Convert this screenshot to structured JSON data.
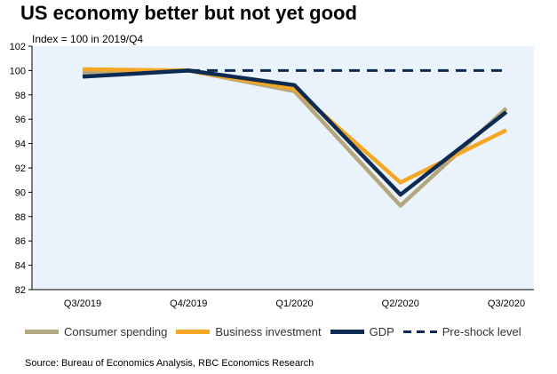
{
  "chart_data": {
    "type": "line",
    "title": "US economy better but not yet good",
    "subtitle": "Index = 100 in 2019/Q4",
    "categories": [
      "Q3/2019",
      "Q4/2019",
      "Q1/2020",
      "Q2/2020",
      "Q3/2020"
    ],
    "ylim": [
      82,
      102
    ],
    "yticks": [
      "82",
      "84",
      "86",
      "88",
      "90",
      "92",
      "94",
      "96",
      "98",
      "100",
      "102"
    ],
    "grid": false,
    "background": "#eaf3fb",
    "series": [
      {
        "name": "Consumer spending",
        "color": "#b5a77d",
        "style": "solid",
        "values": [
          99.8,
          100,
          98.3,
          88.9,
          96.9
        ]
      },
      {
        "name": "Business investment",
        "color": "#f5a623",
        "style": "solid",
        "values": [
          100.1,
          100,
          98.5,
          90.8,
          95.1
        ]
      },
      {
        "name": "GDP",
        "color": "#0c2a52",
        "style": "solid",
        "values": [
          99.5,
          100,
          98.8,
          89.8,
          96.6
        ]
      },
      {
        "name": "Pre-shock level",
        "color": "#0c2a52",
        "style": "dashed",
        "values": [
          100,
          100,
          100,
          100,
          100
        ]
      }
    ],
    "source": "Source: Bureau of Economics Analysis, RBC Economics Research"
  }
}
